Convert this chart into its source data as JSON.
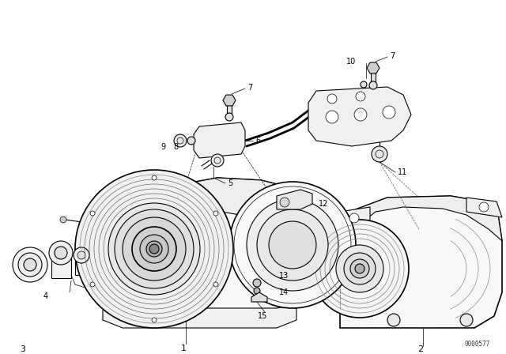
{
  "bg_color": "#ffffff",
  "line_color": "#000000",
  "fig_width": 6.4,
  "fig_height": 4.48,
  "dpi": 100,
  "watermark": "0000577",
  "border_color": "#cccccc"
}
